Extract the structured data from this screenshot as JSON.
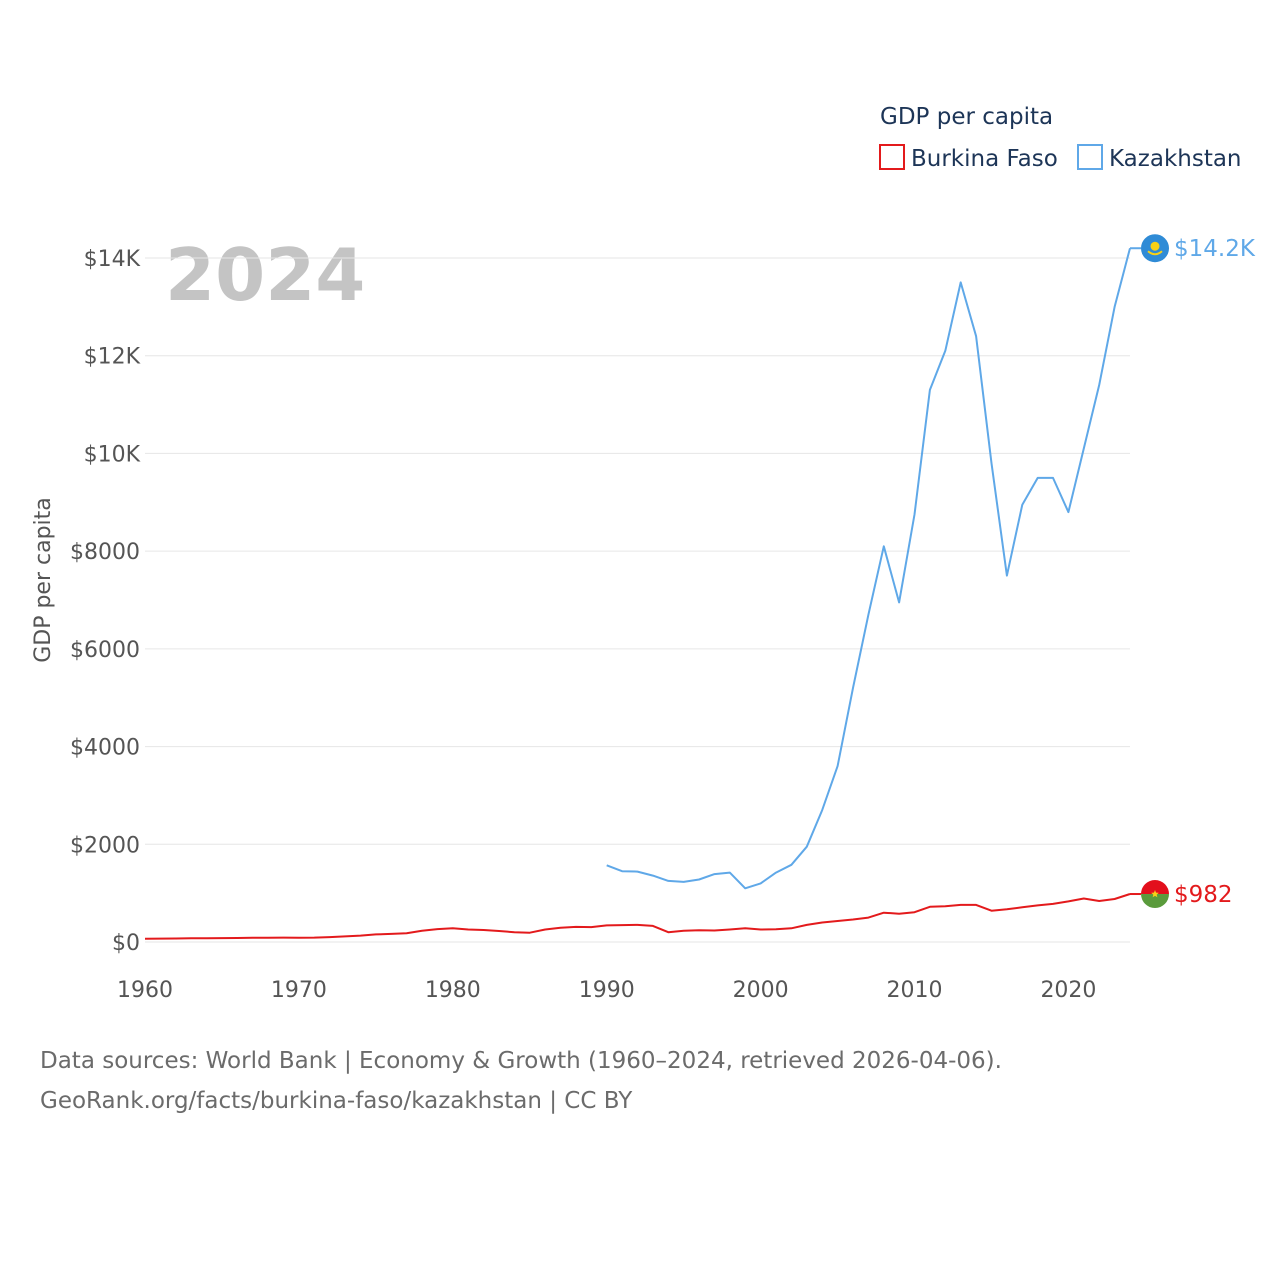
{
  "chart_data": {
    "type": "line",
    "legend_title": "GDP per capita",
    "ylabel": "GDP per capita",
    "current_year_label": "2024",
    "xlim": [
      1960,
      2024
    ],
    "ylim": [
      0,
      14000
    ],
    "x_ticks": [
      1960,
      1970,
      1980,
      1990,
      2000,
      2010,
      2020
    ],
    "x_tick_labels": [
      "1960",
      "1970",
      "1980",
      "1990",
      "2000",
      "2010",
      "2020"
    ],
    "y_ticks": [
      0,
      2000,
      4000,
      6000,
      8000,
      10000,
      12000,
      14000
    ],
    "y_tick_labels": [
      "$0",
      "$2000",
      "$4000",
      "$6000",
      "$8000",
      "$10K",
      "$12K",
      "$14K"
    ],
    "legend_position": "top-right",
    "grid": true,
    "series": [
      {
        "name": "Burkina Faso",
        "color": "#e31a1c",
        "end_label": "$982",
        "flag_icon": "burkina-faso-flag-icon",
        "start_year": 1960,
        "values": [
          68,
          70,
          72,
          75,
          78,
          80,
          82,
          85,
          88,
          90,
          88,
          90,
          100,
          115,
          130,
          155,
          165,
          180,
          230,
          265,
          280,
          255,
          245,
          225,
          200,
          190,
          255,
          290,
          310,
          305,
          340,
          345,
          350,
          330,
          200,
          230,
          240,
          235,
          255,
          280,
          255,
          260,
          280,
          350,
          400,
          430,
          460,
          500,
          600,
          580,
          610,
          720,
          730,
          760,
          760,
          640,
          670,
          710,
          750,
          780,
          830,
          890,
          840,
          880,
          982
        ]
      },
      {
        "name": "Kazakhstan",
        "color": "#5fa8e8",
        "end_label": "$14.2K",
        "flag_icon": "kazakhstan-flag-icon",
        "start_year": 1990,
        "values": [
          1570,
          1450,
          1440,
          1360,
          1250,
          1230,
          1280,
          1390,
          1420,
          1100,
          1200,
          1420,
          1580,
          1950,
          2700,
          3600,
          5200,
          6700,
          8100,
          6950,
          8750,
          11300,
          12100,
          13500,
          12400,
          9800,
          7500,
          8950,
          9500,
          9500,
          8800,
          10100,
          11400,
          13000,
          14200
        ]
      }
    ],
    "source_line1": "Data sources: World Bank | Economy & Growth (1960–2024, retrieved 2026-04-06).",
    "source_line2": "GeoRank.org/facts/burkina-faso/kazakhstan | CC BY"
  }
}
